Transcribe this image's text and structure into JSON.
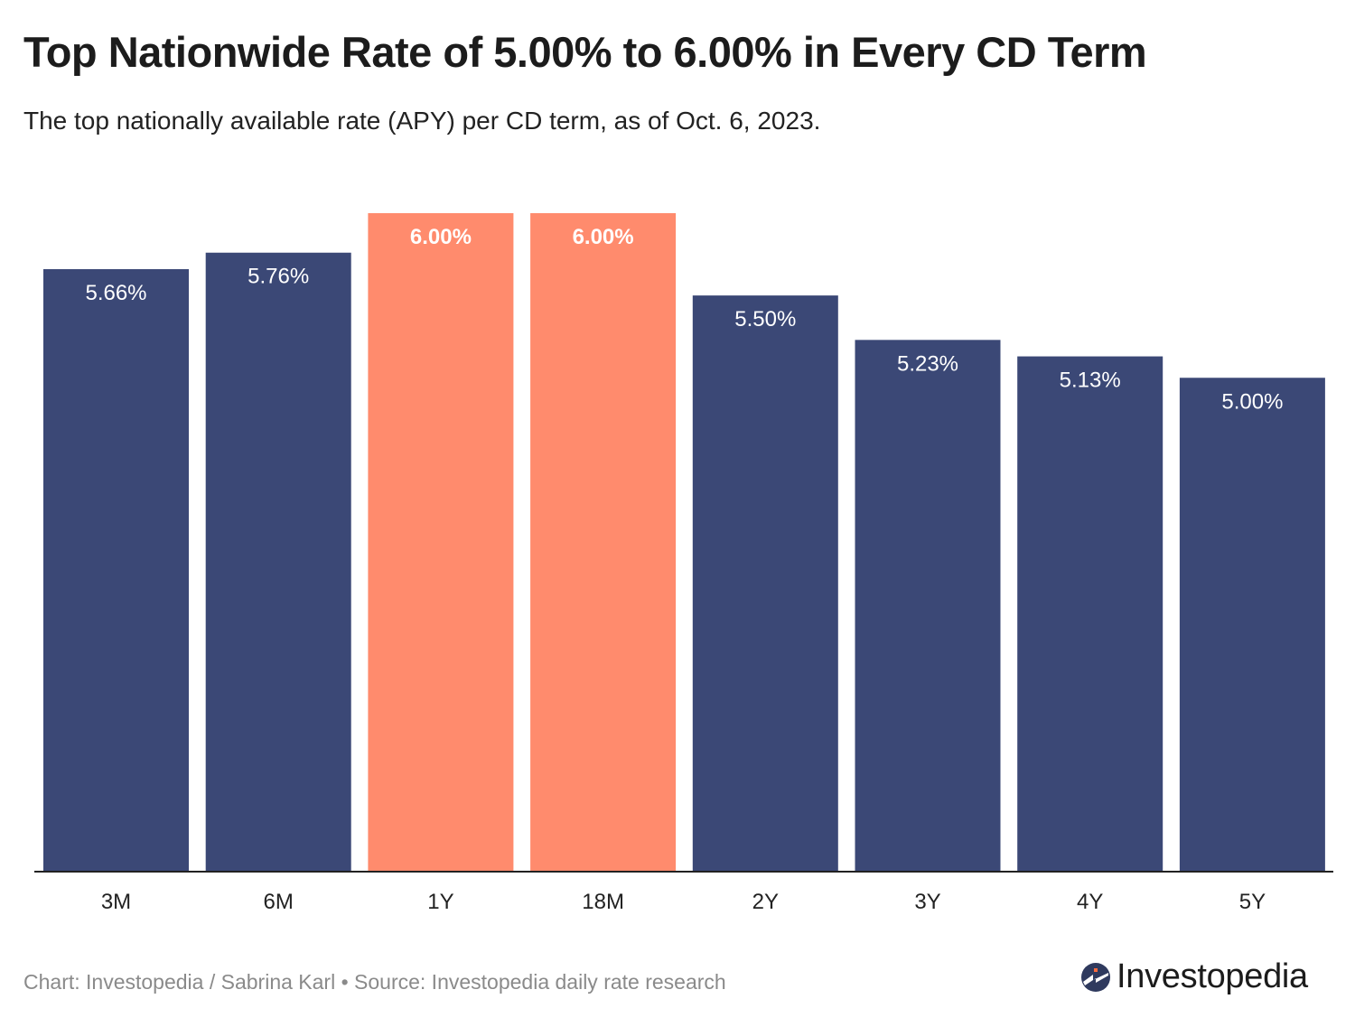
{
  "header": {
    "title": "Top Nationwide Rate of 5.00% to 6.00% in Every CD Term",
    "subtitle": "The top nationally available rate (APY) per CD term, as of Oct. 6, 2023."
  },
  "footer": {
    "credit": "Chart: Investopedia / Sabrina Karl • Source: Investopedia daily rate research"
  },
  "logo": {
    "text": "Investopedia",
    "icon": "investopedia-logo-icon"
  },
  "colors": {
    "default_bar": "#3b4876",
    "highlight_bar": "#ff8b6d",
    "axis": "#222222",
    "label_on_bar": "#ffffff"
  },
  "chart_data": {
    "type": "bar",
    "title": "Top Nationwide Rate of 5.00% to 6.00% in Every CD Term",
    "subtitle": "The top nationally available rate (APY) per CD term, as of Oct. 6, 2023.",
    "xlabel": "",
    "ylabel": "",
    "categories": [
      "3M",
      "6M",
      "1Y",
      "18M",
      "2Y",
      "3Y",
      "4Y",
      "5Y"
    ],
    "values": [
      5.66,
      5.76,
      6.0,
      6.0,
      5.5,
      5.23,
      5.13,
      5.0
    ],
    "labels": [
      "5.66%",
      "5.76%",
      "6.00%",
      "6.00%",
      "5.50%",
      "5.23%",
      "5.13%",
      "5.00%"
    ],
    "highlighted": [
      false,
      false,
      true,
      true,
      false,
      false,
      false,
      false
    ],
    "ylim": [
      2,
      6
    ],
    "grid": false,
    "legend": "none"
  }
}
